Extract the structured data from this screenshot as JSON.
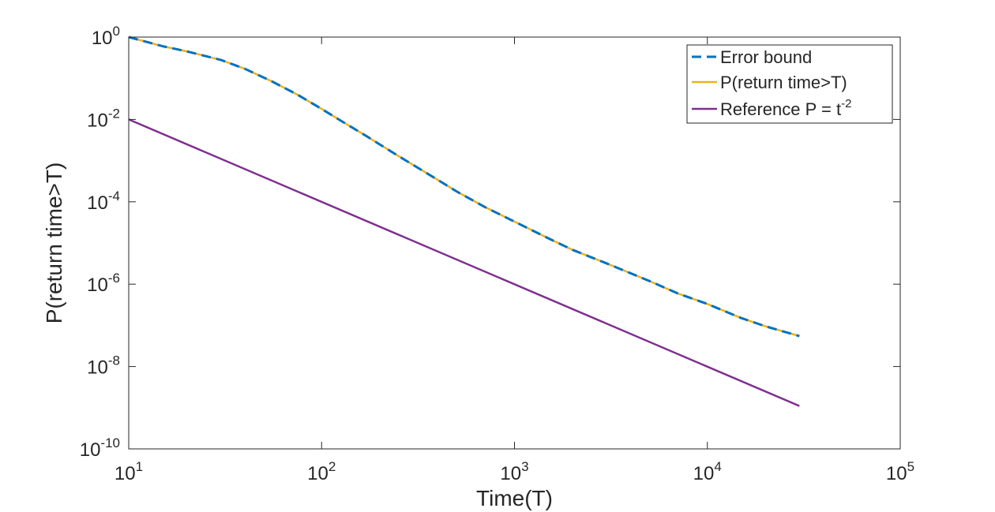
{
  "chart_data": {
    "type": "line",
    "title": "",
    "xlabel": "Time(T)",
    "ylabel": "P(return time>T)",
    "x_scale": "log",
    "y_scale": "log",
    "xlim": [
      10,
      100000
    ],
    "ylim": [
      1e-10,
      1
    ],
    "grid": false,
    "legend_position": "top-right",
    "x_ticks": [
      {
        "value": 10,
        "base": "10",
        "exp": "1"
      },
      {
        "value": 100,
        "base": "10",
        "exp": "2"
      },
      {
        "value": 1000,
        "base": "10",
        "exp": "3"
      },
      {
        "value": 10000,
        "base": "10",
        "exp": "4"
      },
      {
        "value": 100000,
        "base": "10",
        "exp": "5"
      }
    ],
    "y_ticks": [
      {
        "value": 1,
        "base": "10",
        "exp": "0"
      },
      {
        "value": 0.01,
        "base": "10",
        "exp": "-2"
      },
      {
        "value": 0.0001,
        "base": "10",
        "exp": "-4"
      },
      {
        "value": 1e-06,
        "base": "10",
        "exp": "-6"
      },
      {
        "value": 1e-08,
        "base": "10",
        "exp": "-8"
      },
      {
        "value": 1e-10,
        "base": "10",
        "exp": "-10"
      }
    ],
    "series": [
      {
        "name": "Error bound",
        "color": "#0072BD",
        "style": "dashed",
        "x": [
          10,
          15,
          20,
          30,
          40,
          55,
          75,
          100,
          130,
          170,
          250,
          350,
          500,
          700,
          1000,
          1500,
          2000,
          3000,
          5000,
          7000,
          10000,
          15000,
          20000,
          30000
        ],
        "y": [
          1,
          0.6,
          0.45,
          0.28,
          0.17,
          0.085,
          0.04,
          0.018,
          0.0085,
          0.004,
          0.0013,
          0.0005,
          0.00018,
          7.5e-05,
          3.3e-05,
          1.3e-05,
          6.8e-06,
          3.2e-06,
          1.2e-06,
          6e-07,
          3.3e-07,
          1.5e-07,
          9.5e-08,
          5.5e-08
        ]
      },
      {
        "name": "P(return time>T)",
        "color": "#EDB120",
        "style": "solid",
        "x": [
          10,
          15,
          20,
          30,
          40,
          55,
          75,
          100,
          130,
          170,
          250,
          350,
          500,
          700,
          1000,
          1500,
          2000,
          3000,
          5000,
          7000,
          10000,
          15000,
          20000,
          30000
        ],
        "y": [
          1,
          0.6,
          0.45,
          0.28,
          0.17,
          0.085,
          0.04,
          0.018,
          0.0085,
          0.004,
          0.0013,
          0.0005,
          0.00018,
          7.5e-05,
          3.3e-05,
          1.3e-05,
          6.8e-06,
          3.2e-06,
          1.2e-06,
          6e-07,
          3.3e-07,
          1.5e-07,
          9.5e-08,
          5.5e-08
        ]
      },
      {
        "name": "Reference P = t",
        "name_sup": "-2",
        "color": "#7E2F8E",
        "style": "solid",
        "x": [
          10,
          30000
        ],
        "y": [
          0.01,
          1.1e-09
        ]
      }
    ]
  }
}
